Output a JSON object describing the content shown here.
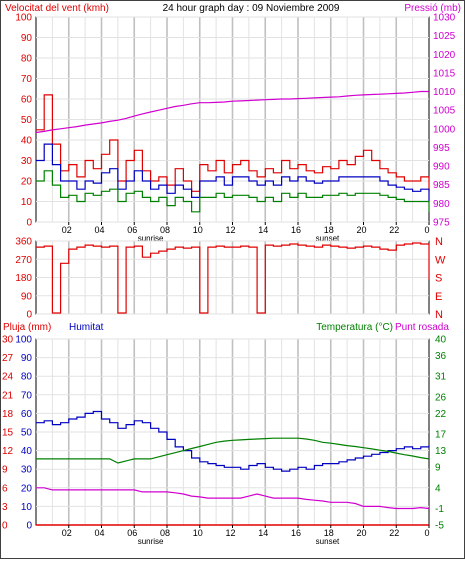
{
  "header": {
    "wind_label": "Velocitat del vent (kmh)",
    "title": "24 hour graph day : 09 Noviembre 2009",
    "pressure_label": "Pressió (mb)"
  },
  "colors": {
    "wind_gust": "#e00000",
    "wind_avg": "#0000c0",
    "wind_low": "#008000",
    "pressure": "#d000d0",
    "direction": "#e00000",
    "rain": "#e00000",
    "humidity": "#0000c0",
    "temperature": "#008000",
    "dewpoint": "#d000d0",
    "grid": "#c8c8c8",
    "frame": "#000000"
  },
  "x_ticks": [
    "02",
    "04",
    "06",
    "08",
    "10",
    "12",
    "14",
    "16",
    "18",
    "20",
    "22",
    "0"
  ],
  "sunrise_label": "sunrise",
  "sunset_label": "sunset",
  "chart_data": [
    {
      "id": "wind_pressure",
      "type": "line",
      "x": [
        0,
        0.5,
        1,
        1.5,
        2,
        2.5,
        3,
        3.5,
        4,
        4.5,
        5,
        5.5,
        6,
        6.5,
        7,
        7.5,
        8,
        8.5,
        9,
        9.5,
        10,
        10.5,
        11,
        11.5,
        12,
        12.5,
        13,
        13.5,
        14,
        14.5,
        15,
        15.5,
        16,
        16.5,
        17,
        17.5,
        18,
        18.5,
        19,
        19.5,
        20,
        20.5,
        21,
        21.5,
        22,
        22.5,
        23,
        23.5,
        24
      ],
      "series": [
        {
          "name": "Velocitat del vent (kmh)",
          "axis": "left",
          "color": "#e00000",
          "values": [
            45,
            62,
            38,
            25,
            28,
            22,
            30,
            26,
            33,
            40,
            20,
            30,
            35,
            25,
            20,
            22,
            18,
            26,
            20,
            15,
            28,
            25,
            30,
            24,
            28,
            30,
            25,
            22,
            26,
            24,
            30,
            26,
            28,
            25,
            24,
            27,
            26,
            30,
            28,
            32,
            35,
            30,
            26,
            24,
            22,
            20,
            20,
            22,
            15
          ]
        },
        {
          "name": "",
          "axis": "left",
          "color": "#0000c0",
          "values": [
            30,
            38,
            28,
            20,
            20,
            16,
            20,
            19,
            24,
            26,
            16,
            20,
            25,
            20,
            16,
            18,
            14,
            18,
            16,
            12,
            20,
            20,
            22,
            18,
            22,
            22,
            20,
            18,
            20,
            18,
            22,
            20,
            22,
            20,
            19,
            20,
            20,
            22,
            22,
            22,
            22,
            22,
            20,
            18,
            17,
            16,
            15,
            16,
            10
          ]
        },
        {
          "name": "",
          "axis": "left",
          "color": "#008000",
          "values": [
            20,
            25,
            18,
            12,
            13,
            10,
            14,
            13,
            15,
            16,
            10,
            14,
            15,
            12,
            10,
            12,
            8,
            12,
            10,
            5,
            12,
            12,
            14,
            12,
            13,
            13,
            12,
            10,
            12,
            10,
            14,
            12,
            14,
            12,
            12,
            13,
            13,
            14,
            13,
            14,
            14,
            14,
            13,
            12,
            11,
            10,
            10,
            10,
            5
          ]
        },
        {
          "name": "Pressió (mb)",
          "axis": "right",
          "color": "#d000d0",
          "values": [
            999,
            999.3,
            999.7,
            1000,
            1000.3,
            1000.6,
            1001,
            1001.3,
            1001.6,
            1002,
            1002.3,
            1002.8,
            1003.4,
            1004,
            1004.5,
            1005,
            1005.5,
            1006,
            1006.3,
            1006.7,
            1007,
            1007,
            1007.1,
            1007.2,
            1007.4,
            1007.5,
            1007.6,
            1007.7,
            1007.8,
            1007.9,
            1008,
            1008,
            1008.1,
            1008.2,
            1008.3,
            1008.4,
            1008.5,
            1008.6,
            1008.8,
            1009,
            1009.1,
            1009.2,
            1009.3,
            1009.4,
            1009.5,
            1009.6,
            1009.8,
            1010,
            1010
          ]
        }
      ],
      "ylim_left": [
        0,
        100
      ],
      "yticks_left": [
        0,
        10,
        20,
        30,
        40,
        50,
        60,
        70,
        80,
        90,
        100
      ],
      "ylim_right": [
        975,
        1030
      ],
      "yticks_right": [
        975,
        980,
        985,
        990,
        995,
        1000,
        1005,
        1010,
        1015,
        1020,
        1025,
        1030
      ]
    },
    {
      "id": "wind_direction",
      "type": "line",
      "x": [
        0,
        0.5,
        1,
        1.5,
        2,
        2.5,
        3,
        3.5,
        4,
        4.5,
        5,
        5.5,
        6,
        6.5,
        7,
        7.5,
        8,
        8.5,
        9,
        9.5,
        10,
        10.5,
        11,
        11.5,
        12,
        12.5,
        13,
        13.5,
        14,
        14.5,
        15,
        15.5,
        16,
        16.5,
        17,
        17.5,
        18,
        18.5,
        19,
        19.5,
        20,
        20.5,
        21,
        21.5,
        22,
        22.5,
        23,
        23.5,
        24
      ],
      "series": [
        {
          "name": "",
          "color": "#e00000",
          "values": [
            330,
            335,
            5,
            250,
            320,
            330,
            340,
            335,
            330,
            335,
            5,
            330,
            335,
            280,
            300,
            310,
            320,
            330,
            325,
            330,
            5,
            330,
            335,
            330,
            330,
            335,
            330,
            5,
            340,
            335,
            340,
            345,
            340,
            335,
            330,
            340,
            335,
            330,
            325,
            330,
            335,
            330,
            320,
            315,
            340,
            345,
            350,
            345,
            170
          ]
        }
      ],
      "ylim": [
        0,
        360
      ],
      "yticks_left": [
        0,
        90,
        180,
        270,
        360
      ],
      "right_labels": [
        "N",
        "W",
        "S",
        "E",
        "N"
      ]
    },
    {
      "id": "humidity_temperature",
      "type": "line",
      "x": [
        0,
        0.5,
        1,
        1.5,
        2,
        2.5,
        3,
        3.5,
        4,
        4.5,
        5,
        5.5,
        6,
        6.5,
        7,
        7.5,
        8,
        8.5,
        9,
        9.5,
        10,
        10.5,
        11,
        11.5,
        12,
        12.5,
        13,
        13.5,
        14,
        14.5,
        15,
        15.5,
        16,
        16.5,
        17,
        17.5,
        18,
        18.5,
        19,
        19.5,
        20,
        20.5,
        21,
        21.5,
        22,
        22.5,
        23,
        23.5,
        24
      ],
      "header": {
        "rain_label": "Pluja (mm)",
        "humidity_label": "Humitat",
        "temp_label": "Temperatura (°C)",
        "dew_label": "Punt rosada"
      },
      "series": [
        {
          "name": "Pluja (mm)",
          "axis": "left",
          "color": "#e00000",
          "values": [
            0,
            0,
            0,
            0,
            0,
            0,
            0,
            0,
            0,
            0,
            0,
            0,
            0,
            0,
            0,
            0,
            0,
            0,
            0,
            0,
            0,
            0,
            0,
            0,
            0,
            0,
            0,
            0,
            0,
            0,
            0,
            0,
            0,
            0,
            0,
            0,
            0,
            0,
            0,
            0,
            0,
            0,
            0,
            0,
            0,
            0,
            0,
            0,
            0
          ]
        },
        {
          "name": "Humitat",
          "axis": "left",
          "color": "#0000c0",
          "values": [
            55,
            56,
            54,
            55,
            57,
            58,
            60,
            61,
            57,
            55,
            52,
            54,
            56,
            55,
            52,
            50,
            46,
            42,
            40,
            36,
            34,
            33,
            32,
            31,
            31,
            30,
            32,
            33,
            31,
            30,
            29,
            30,
            31,
            30,
            32,
            33,
            33,
            34,
            35,
            36,
            37,
            38,
            39,
            40,
            41,
            42,
            41,
            42,
            43
          ]
        },
        {
          "name": "Temperatura (°C)",
          "axis": "right",
          "color": "#008000",
          "values": [
            11,
            11,
            11,
            11,
            11,
            11,
            11,
            11,
            11,
            11,
            10,
            10.5,
            11,
            11,
            11,
            11.5,
            12,
            12.5,
            13,
            13.5,
            14,
            14.5,
            15,
            15.3,
            15.5,
            15.6,
            15.7,
            15.8,
            15.9,
            16,
            16,
            16,
            16,
            15.8,
            15.5,
            15,
            14.8,
            14.5,
            14.2,
            14,
            13.7,
            13.4,
            13.1,
            12.8,
            12.4,
            12,
            11.7,
            11.3,
            11
          ]
        },
        {
          "name": "Punt rosada",
          "axis": "right",
          "color": "#d000d0",
          "values": [
            4,
            4,
            3.5,
            3.5,
            3.5,
            3.5,
            3.5,
            3.5,
            3.5,
            3.5,
            3.5,
            3.5,
            3.5,
            3,
            3,
            3,
            3,
            2.8,
            2.5,
            2,
            1.8,
            1.5,
            1.5,
            1.5,
            1.5,
            1.5,
            2,
            2.5,
            2,
            1.5,
            1.5,
            1.5,
            1.5,
            1.2,
            1,
            0.8,
            0.5,
            0.5,
            0.5,
            0.2,
            -0.5,
            -0.5,
            -0.5,
            -0.8,
            -1,
            -1,
            -1,
            -0.8,
            -1
          ]
        }
      ],
      "ylim_left": [
        0,
        100
      ],
      "yticks_left": [
        0,
        10,
        20,
        30,
        40,
        50,
        60,
        70,
        80,
        90,
        100
      ],
      "yticks_left_rain": [
        0,
        3,
        6,
        9,
        12,
        15,
        18,
        21,
        24,
        27,
        30
      ],
      "ylim_right": [
        -5,
        40
      ],
      "yticks_right": [
        -5,
        -1,
        4,
        9,
        13,
        17,
        22,
        26,
        31,
        36,
        40
      ]
    }
  ]
}
